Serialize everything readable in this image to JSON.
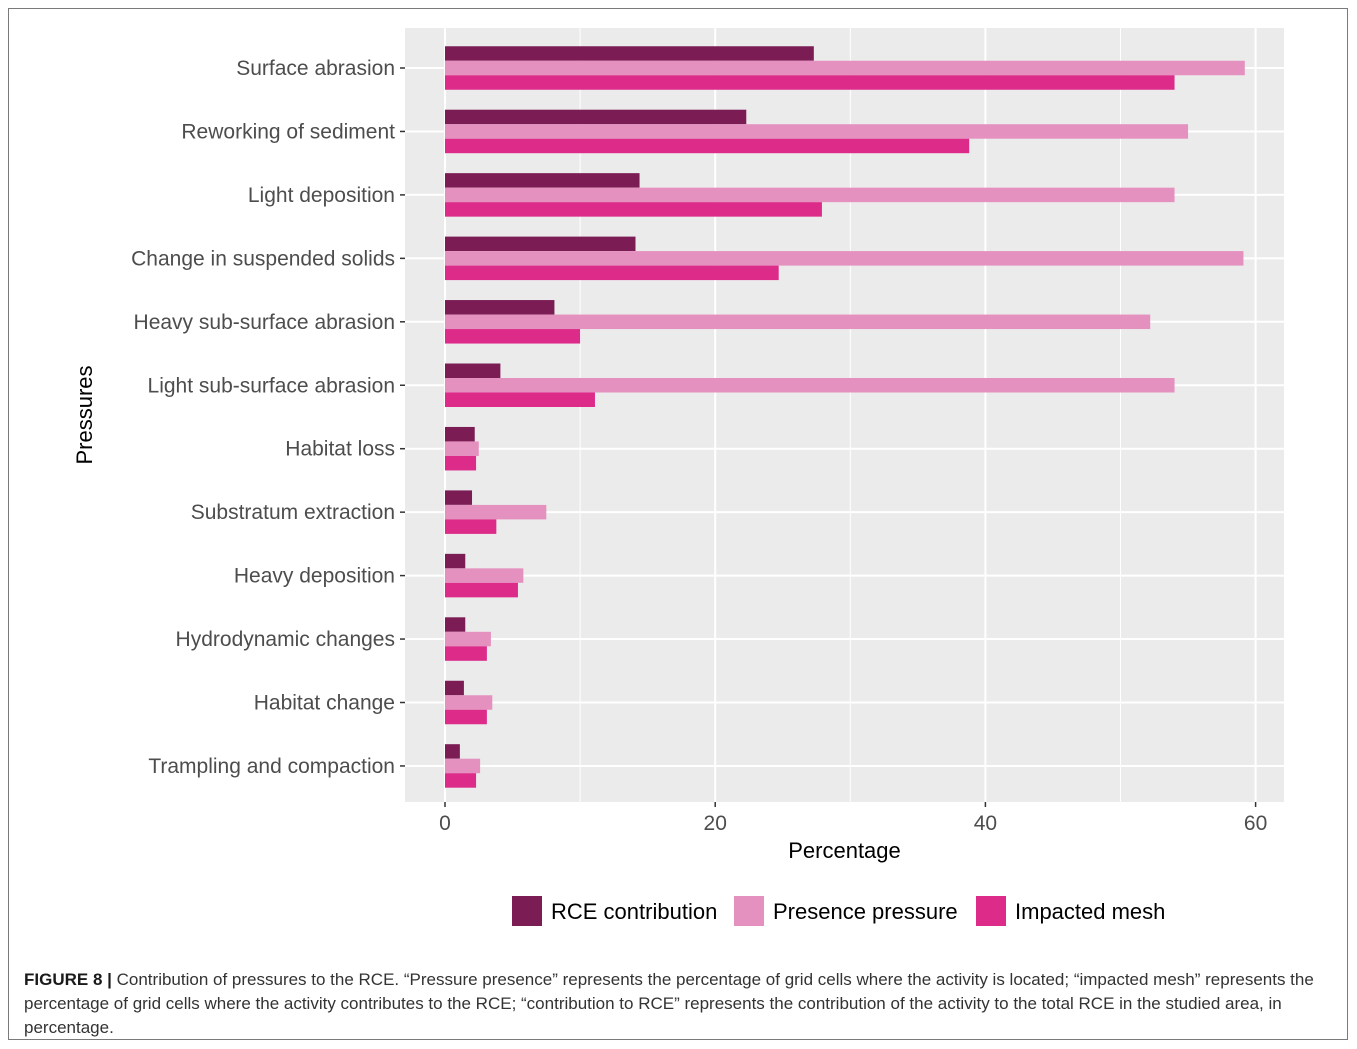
{
  "figure": {
    "label": "FIGURE 8 |",
    "caption": "Contribution of pressures to the RCE. “Pressure presence” represents the percentage of grid cells where the activity is located; “impacted mesh” represents the percentage of grid cells where the activity contributes to the RCE; “contribution to RCE” represents the contribution of the activity to the total RCE in the studied area, in percentage."
  },
  "chart_data": {
    "type": "bar",
    "orientation": "horizontal",
    "xlabel": "Percentage",
    "ylabel": "Pressures",
    "xlim": [
      -3,
      62
    ],
    "xticks": [
      0,
      20,
      40,
      60
    ],
    "grid": true,
    "legend_position": "bottom",
    "categories": [
      "Surface abrasion",
      "Reworking of sediment",
      "Light deposition",
      "Change in suspended solids",
      "Heavy sub-surface abrasion",
      "Light sub-surface abrasion",
      "Habitat loss",
      "Substratum extraction",
      "Heavy deposition",
      "Hydrodynamic changes",
      "Habitat change",
      "Trampling and compaction"
    ],
    "series": [
      {
        "name": "RCE contribution",
        "color": "#7b1c55",
        "values": [
          27.3,
          22.3,
          14.4,
          14.1,
          8.1,
          4.1,
          2.2,
          2.0,
          1.5,
          1.5,
          1.4,
          1.1
        ]
      },
      {
        "name": "Presence pressure",
        "color": "#e591bf",
        "values": [
          59.2,
          55.0,
          54.0,
          59.1,
          52.2,
          54.0,
          2.5,
          7.5,
          5.8,
          3.4,
          3.5,
          2.6
        ]
      },
      {
        "name": "Impacted mesh",
        "color": "#dd2b8a",
        "values": [
          54.0,
          38.8,
          27.9,
          24.7,
          10.0,
          11.1,
          2.3,
          3.8,
          5.4,
          3.1,
          3.1,
          2.3
        ]
      }
    ]
  },
  "colors": {
    "panel": "#ebebeb",
    "grid_major": "#ffffff"
  }
}
